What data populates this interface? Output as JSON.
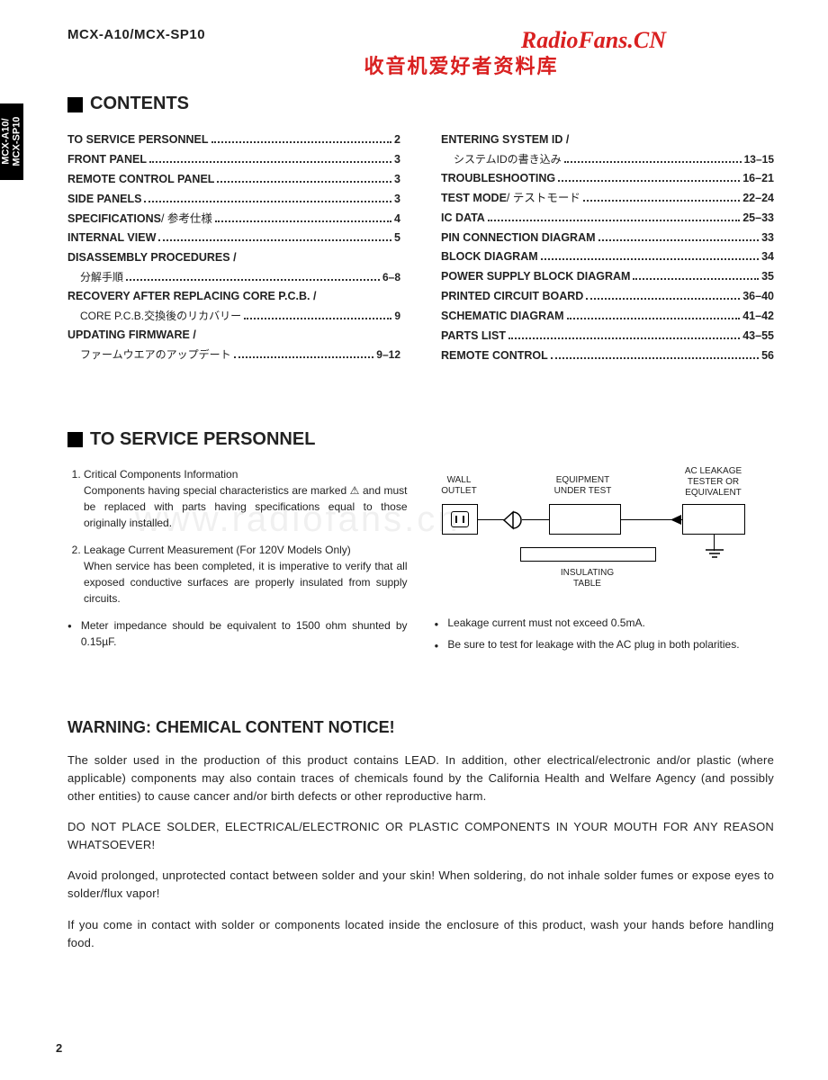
{
  "header": {
    "model": "MCX-A10/MCX-SP10",
    "watermark_title": "RadioFans.CN",
    "watermark_sub": "收音机爱好者资料库",
    "side_tab": "MCX-A10/\nMCX-SP10"
  },
  "contents": {
    "title": "CONTENTS",
    "left": [
      {
        "label": "TO SERVICE PERSONNEL",
        "page": "2",
        "bold": true
      },
      {
        "label": "FRONT PANEL",
        "page": "3",
        "bold": true
      },
      {
        "label": "REMOTE CONTROL PANEL",
        "page": "3",
        "bold": true
      },
      {
        "label": "SIDE PANELS",
        "page": "3",
        "bold": true
      },
      {
        "label": "SPECIFICATIONS",
        "suffix": " / 参考仕様",
        "page": "4",
        "bold": true
      },
      {
        "label": "INTERNAL VIEW",
        "page": "5",
        "bold": true
      },
      {
        "label": "DISASSEMBLY PROCEDURES /",
        "nopage": true,
        "bold": true
      },
      {
        "label": "分解手順",
        "page": "6–8",
        "sub": true
      },
      {
        "label": "RECOVERY AFTER REPLACING CORE P.C.B. /",
        "nopage": true,
        "bold": true
      },
      {
        "label": "CORE P.C.B.交換後のリカバリー",
        "page": "9",
        "sub": true
      },
      {
        "label": "UPDATING FIRMWARE /",
        "nopage": true,
        "bold": true
      },
      {
        "label": "ファームウエアのアップデート",
        "page": "9–12",
        "sub": true
      }
    ],
    "right": [
      {
        "label": "ENTERING SYSTEM ID /",
        "nopage": true,
        "bold": true
      },
      {
        "label": "システムIDの書き込み",
        "page": "13–15",
        "sub": true
      },
      {
        "label": "TROUBLESHOOTING",
        "page": "16–21",
        "bold": true
      },
      {
        "label": "TEST MODE",
        "suffix": " / テストモード",
        "page": "22–24",
        "bold": true
      },
      {
        "label": "IC DATA",
        "page": "25–33",
        "bold": true
      },
      {
        "label": "PIN CONNECTION DIAGRAM",
        "page": "33",
        "bold": true
      },
      {
        "label": "BLOCK DIAGRAM",
        "page": "34",
        "bold": true
      },
      {
        "label": "POWER SUPPLY BLOCK DIAGRAM",
        "page": "35",
        "bold": true
      },
      {
        "label": "PRINTED CIRCUIT BOARD",
        "page": "36–40",
        "bold": true
      },
      {
        "label": "SCHEMATIC DIAGRAM",
        "page": "41–42",
        "bold": true
      },
      {
        "label": "PARTS LIST",
        "page": "43–55",
        "bold": true
      },
      {
        "label": "REMOTE CONTROL",
        "page": "56",
        "bold": true
      }
    ]
  },
  "service": {
    "title": "TO SERVICE PERSONNEL",
    "items": [
      "Critical Components Information\nComponents having special characteristics are marked ⚠ and must be replaced with parts having specifications equal to those originally installed.",
      "Leakage Current Measurement (For 120V Models Only)\nWhen service has been completed, it is imperative to verify that all exposed conductive surfaces are properly insulated from supply circuits."
    ],
    "bullet_left": "Meter impedance should be equivalent to 1500 ohm shunted by 0.15µF.",
    "bullets_right": [
      "Leakage current must not exceed 0.5mA.",
      "Be sure to test for leakage with the AC plug in both polarities."
    ],
    "diagram": {
      "wall": "WALL\nOUTLET",
      "equip": "EQUIPMENT\nUNDER TEST",
      "tester": "AC LEAKAGE\nTESTER OR\nEQUIVALENT",
      "table": "INSULATING\nTABLE"
    }
  },
  "watermark_body": "www.radiofans.cn",
  "warning": {
    "title": "WARNING: CHEMICAL CONTENT NOTICE!",
    "p1": "The solder used in the production of this product contains LEAD. In addition, other electrical/electronic and/or plastic (where applicable) components may also contain traces of chemicals found by the California Health and Welfare Agency (and possibly other entities) to cause cancer and/or birth defects or other reproductive harm.",
    "p2": "DO NOT PLACE SOLDER, ELECTRICAL/ELECTRONIC OR PLASTIC COMPONENTS IN YOUR MOUTH FOR ANY REASON WHATSOEVER!",
    "p3": "Avoid prolonged, unprotected contact between solder and your skin! When soldering, do not inhale solder fumes or expose eyes to solder/flux vapor!",
    "p4": "If you come in contact with solder or components located inside the enclosure of this product, wash your hands before handling food."
  },
  "page_number": "2"
}
